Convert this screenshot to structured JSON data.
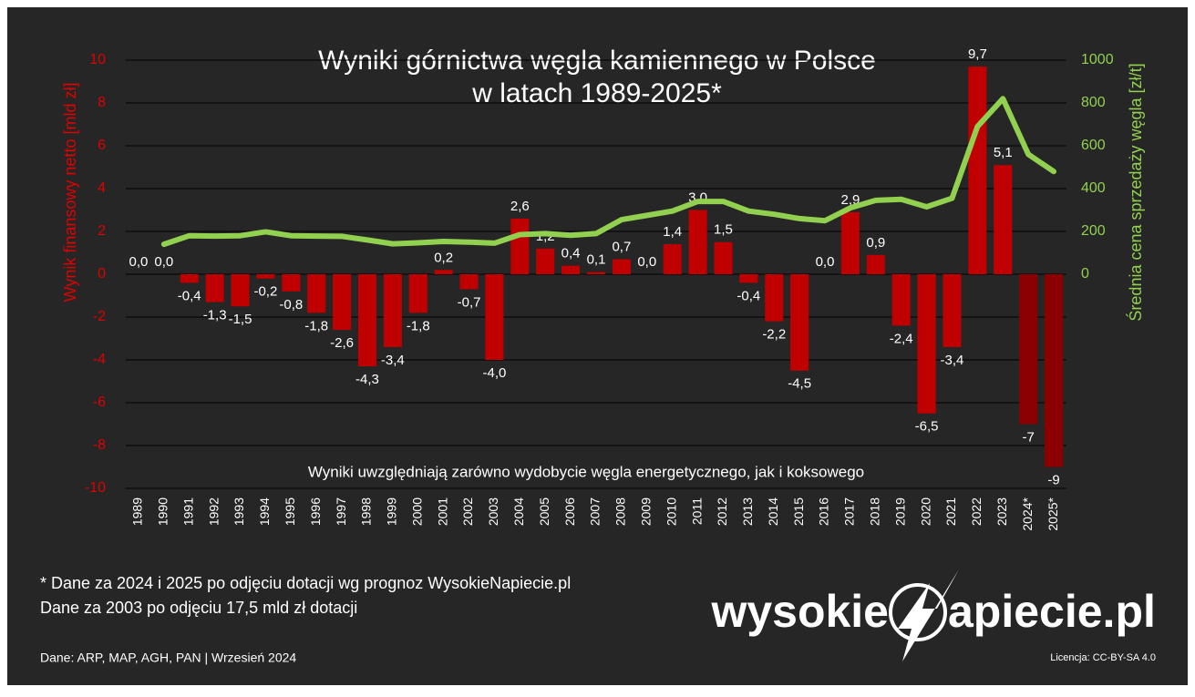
{
  "chart_data": {
    "type": "bar_line",
    "title": [
      "Wyniki górnictwa węgla kamiennego w Polsce",
      "w latach 1989-2025*"
    ],
    "y_label": "Wynik finansowy netto [mld zł]",
    "y2_label": "Średnia cena sprzedaży węgla [zł/t]",
    "annotation": "Wyniki uwzględniają zarówno wydobycie węgla energetycznego, jak i koksowego",
    "footnotes": [
      "* Dane za 2024 i 2025 po odjęciu dotacji wg prognoz WysokieNapiecie.pl",
      "Dane za 2003 po odjęciu 17,5 mld zł dotacji"
    ],
    "source": "Dane: ARP, MAP, AGH, PAN  |  Wrzesień 2024",
    "license": "Licencja: CC-BY-SA 4.0",
    "logo": [
      "wysokie",
      "apiecie.pl"
    ],
    "categories": [
      "1989",
      "1990",
      "1991",
      "1992",
      "1993",
      "1994",
      "1995",
      "1996",
      "1997",
      "1998",
      "1999",
      "2000",
      "2001",
      "2002",
      "2003",
      "2004",
      "2005",
      "2006",
      "2007",
      "2008",
      "2009",
      "2010",
      "2011",
      "2012",
      "2013",
      "2014",
      "2015",
      "2016",
      "2017",
      "2018",
      "2019",
      "2020",
      "2021",
      "2022",
      "2023",
      "2024*",
      "2025*"
    ],
    "series": [
      {
        "name": "Wynik finansowy netto",
        "type": "bar",
        "colors": [
          "#c00000",
          "#c00000",
          "#c00000",
          "#c00000",
          "#c00000",
          "#c00000",
          "#c00000",
          "#c00000",
          "#c00000",
          "#c00000",
          "#c00000",
          "#c00000",
          "#c00000",
          "#c00000",
          "#c00000",
          "#c00000",
          "#c00000",
          "#c00000",
          "#c00000",
          "#c00000",
          "#c00000",
          "#c00000",
          "#c00000",
          "#c00000",
          "#c00000",
          "#c00000",
          "#c00000",
          "#c00000",
          "#c00000",
          "#c00000",
          "#c00000",
          "#c00000",
          "#c00000",
          "#c00000",
          "#c00000",
          "#8b0000",
          "#8b0000"
        ],
        "values": [
          0.0,
          0.0,
          -0.4,
          -1.3,
          -1.5,
          -0.2,
          -0.8,
          -1.8,
          -2.6,
          -4.3,
          -3.4,
          -1.8,
          0.2,
          -0.7,
          -4.0,
          2.6,
          1.2,
          0.4,
          0.1,
          0.7,
          0.0,
          1.4,
          3.0,
          1.5,
          -0.4,
          -2.2,
          -4.5,
          0.0,
          2.9,
          0.9,
          -2.4,
          -6.5,
          -3.4,
          9.7,
          5.1,
          -7,
          -9
        ],
        "value_labels": [
          "0,0",
          "0,0",
          "-0,4",
          "-1,3",
          "-1,5",
          "-0,2",
          "-0,8",
          "-1,8",
          "-2,6",
          "-4,3",
          "-3,4",
          "-1,8",
          "0,2",
          "-0,7",
          "-4,0",
          "2,6",
          "1,2",
          "0,4",
          "0,1",
          "0,7",
          "0,0",
          "1,4",
          "3,0",
          "1,5",
          "-0,4",
          "-2,2",
          "-4,5",
          "0,0",
          "2,9",
          "0,9",
          "-2,4",
          "-6,5",
          "-3,4",
          "9,7",
          "5,1",
          "-7",
          "-9"
        ]
      },
      {
        "name": "Średnia cena sprzedaży węgla",
        "type": "line",
        "axis": "y2",
        "color": "#92d050",
        "values": [
          null,
          140,
          180,
          178,
          180,
          198,
          180,
          178,
          177,
          160,
          142,
          147,
          153,
          150,
          145,
          185,
          190,
          182,
          190,
          255,
          275,
          295,
          340,
          340,
          295,
          280,
          260,
          250,
          310,
          345,
          350,
          315,
          355,
          690,
          820,
          560,
          480
        ]
      }
    ],
    "ylim": [
      -10,
      10
    ],
    "yticks": [
      -10,
      -8,
      -6,
      -4,
      -2,
      0,
      2,
      4,
      6,
      8,
      10
    ],
    "y2lim": [
      -1000,
      1000
    ],
    "y2ticks": [
      0,
      200,
      400,
      600,
      800,
      1000
    ],
    "grid": true
  }
}
